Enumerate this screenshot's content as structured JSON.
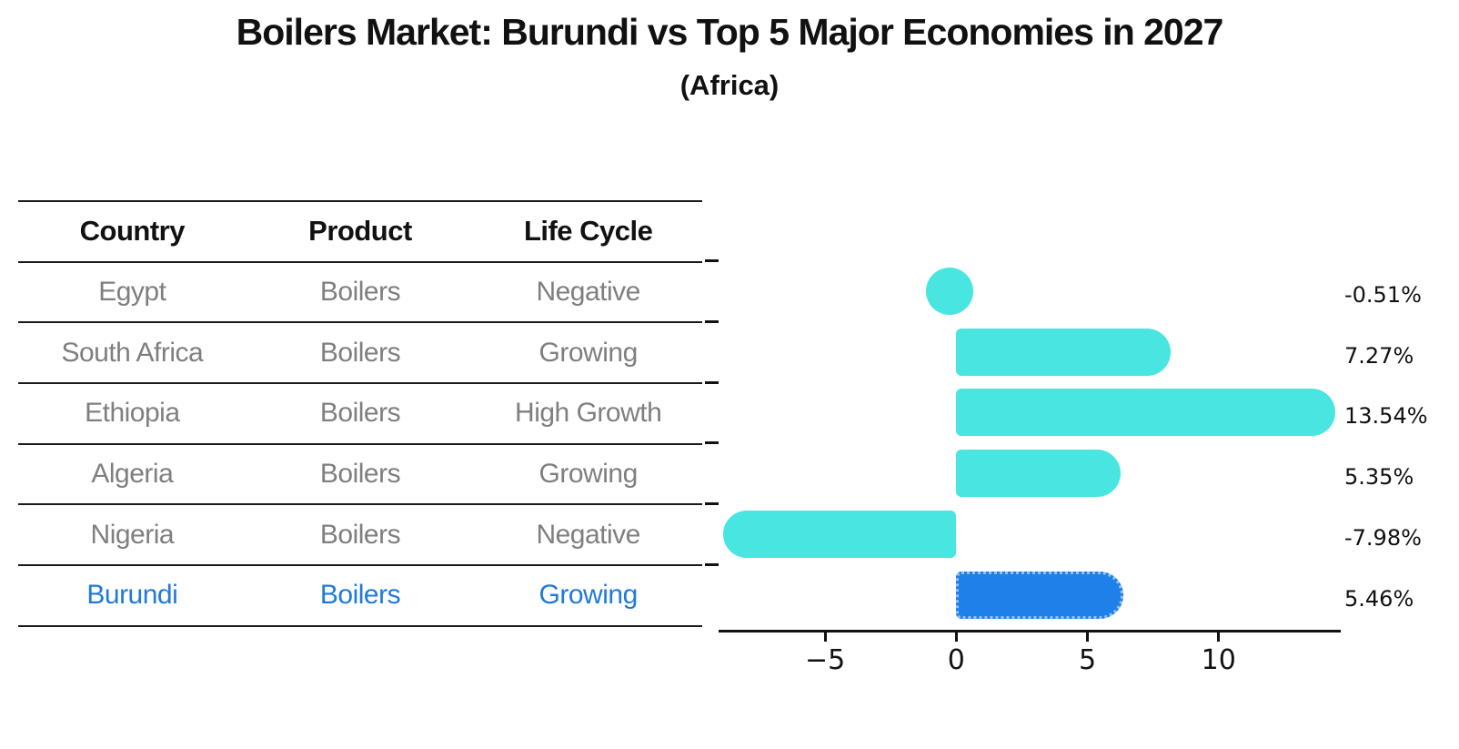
{
  "header": {
    "title": "Boilers Market: Burundi vs Top 5 Major Economies in 2027",
    "subtitle": "(Africa)"
  },
  "table": {
    "headers": [
      "Country",
      "Product",
      "Life Cycle"
    ],
    "rows": [
      {
        "country": "Egypt",
        "product": "Boilers",
        "life_cycle": "Negative",
        "highlighted": false
      },
      {
        "country": "South Africa",
        "product": "Boilers",
        "life_cycle": "Growing",
        "highlighted": false
      },
      {
        "country": "Ethiopia",
        "product": "Boilers",
        "life_cycle": "High Growth",
        "highlighted": false
      },
      {
        "country": "Algeria",
        "product": "Boilers",
        "life_cycle": "Growing",
        "highlighted": false
      },
      {
        "country": "Nigeria",
        "product": "Boilers",
        "life_cycle": "Negative",
        "highlighted": false
      },
      {
        "country": "Burundi",
        "product": "Boilers",
        "life_cycle": "Growing",
        "highlighted": true
      }
    ]
  },
  "chart_data": {
    "type": "bar",
    "orientation": "horizontal",
    "title": "Boilers Market: Burundi vs Top 5 Major Economies in 2027",
    "subtitle": "(Africa)",
    "categories": [
      "Egypt",
      "South Africa",
      "Ethiopia",
      "Algeria",
      "Nigeria",
      "Burundi"
    ],
    "values": [
      -0.51,
      7.27,
      13.54,
      5.35,
      -7.98,
      5.46
    ],
    "value_labels": [
      "-0.51%",
      "7.27%",
      "13.54%",
      "5.35%",
      "-7.98%",
      "5.46%"
    ],
    "highlight_category": "Burundi",
    "x_ticks": [
      -5,
      0,
      5,
      10
    ],
    "x_tick_labels": [
      "−5",
      "0",
      "5",
      "10"
    ],
    "xlim": [
      -9.06,
      14.62
    ],
    "xlabel": "",
    "ylabel": "",
    "grid": false,
    "legend": false,
    "colors": {
      "bar_default": "#48E5E1",
      "bar_highlight": "#1E80E8",
      "bar_highlight_border": "#8fc3f7",
      "highlight_text": "#1F7AD9",
      "row_text": "#7f7f7f",
      "axis_text": "#111111"
    }
  }
}
